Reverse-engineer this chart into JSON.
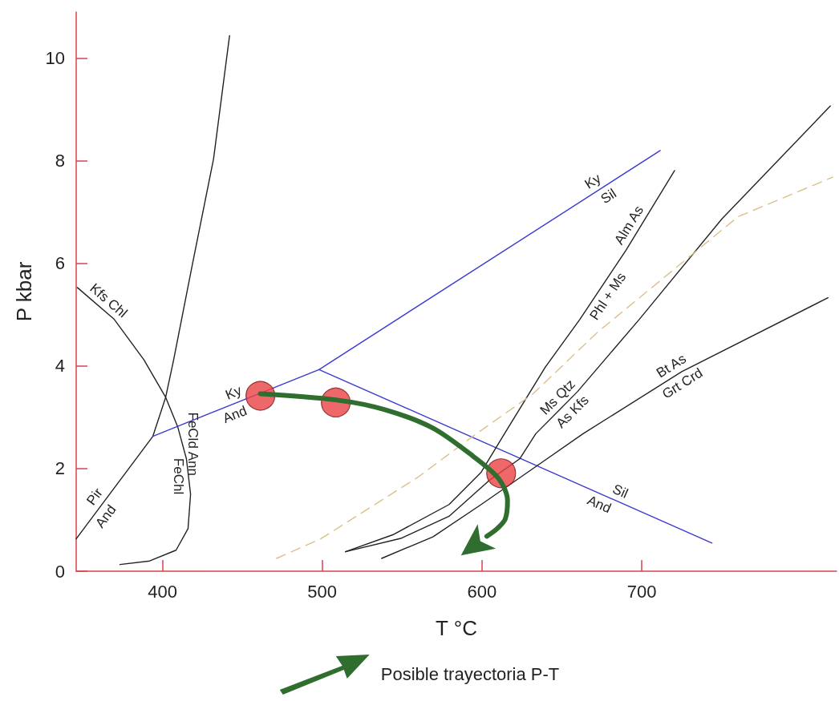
{
  "chart_data": {
    "type": "line",
    "xlabel": "T °C",
    "ylabel": "P kbar",
    "xlim": [
      346,
      822
    ],
    "ylim": [
      0,
      10.9
    ],
    "xticks": [
      400,
      500,
      600,
      700
    ],
    "yticks": [
      0,
      2,
      4,
      6,
      8,
      10
    ],
    "grid": false,
    "legend": "bottom",
    "marker": "none",
    "line_style": "solid",
    "series": [
      {
        "color": "#222222",
        "x": [
          346,
          394,
          402,
          407,
          418.6,
          432,
          442
        ],
        "values": [
          0.63,
          2.63,
          3.39,
          4.12,
          5.96,
          8.04,
          10.44
        ]
      },
      {
        "color": "#222222",
        "x": [
          346.7,
          369.8,
          388.4,
          402,
          409.5,
          415,
          417.6,
          416,
          408.5,
          392,
          373.4
        ],
        "values": [
          5.53,
          4.91,
          4.12,
          3.39,
          2.82,
          2.19,
          1.5,
          0.83,
          0.41,
          0.2,
          0.13
        ]
      },
      {
        "color": "#3a3ad0",
        "x": [
          394,
          498,
          711.6
        ],
        "values": [
          2.63,
          3.93,
          8.2
        ]
      },
      {
        "color": "#3a3ad0",
        "x": [
          498,
          744
        ],
        "values": [
          3.93,
          0.55
        ]
      },
      {
        "color": "#222222",
        "x": [
          514.6,
          544.2,
          579.4,
          599.5,
          614.1,
          639.7,
          661.3,
          690,
          720.6
        ],
        "values": [
          0.38,
          0.71,
          1.3,
          1.93,
          2.68,
          3.98,
          4.91,
          6.25,
          7.81
        ]
      },
      {
        "color": "#222222",
        "x": [
          514.6,
          549.2,
          579.4,
          604.5,
          623.6,
          633.7,
          659.8,
          698.5,
          750.3,
          818.1
        ],
        "values": [
          0.38,
          0.64,
          1.07,
          1.77,
          2.19,
          2.68,
          3.5,
          4.91,
          6.87,
          9.07
        ]
      },
      {
        "color": "#222222",
        "x": [
          537.2,
          569.3,
          599.5,
          634.2,
          663.3,
          725.1,
          816.6
        ],
        "values": [
          0.25,
          0.67,
          1.3,
          2.05,
          2.68,
          3.89,
          5.33
        ]
      },
      {
        "color": "#dcc08a",
        "line_style": "dashed",
        "x": [
          471.4,
          499,
          559.3,
          596.5,
          631.7,
          672.4,
          760.3,
          819.6
        ],
        "values": [
          0.25,
          0.63,
          1.82,
          2.68,
          3.45,
          4.66,
          6.91,
          7.68
        ]
      },
      {
        "name": "Posible trayectoria P-T",
        "color": "#2f6e2f",
        "x": [
          461.3,
          508.5,
          539.2,
          569.3,
          594.5,
          610.6,
          616,
          614.6,
          609.5,
          603
        ],
        "values": [
          3.46,
          3.34,
          3.15,
          2.79,
          2.24,
          1.8,
          1.38,
          1.02,
          0.83,
          0.68
        ]
      },
      {
        "type": "scatter",
        "marker": "circle",
        "color": "#ea4245",
        "x": [
          461.3,
          508.5,
          612
        ],
        "values": [
          3.42,
          3.29,
          1.91
        ]
      }
    ],
    "annotations": [
      {
        "text": "Kfs Chl",
        "x": 362,
        "y": 5.12
      },
      {
        "text": "Pir",
        "x": 362.8,
        "y": 1.33
      },
      {
        "text": "And",
        "x": 359.3,
        "y": 1.19
      },
      {
        "text": "FeChl",
        "x": 416.3,
        "y": 1.85
      },
      {
        "text": "FeCld Ann",
        "x": 412.5,
        "y": 2.48
      },
      {
        "text": "Ky",
        "x": 446.9,
        "y": 3.29
      },
      {
        "text": "And",
        "x": 442.9,
        "y": 3.24
      },
      {
        "text": "Ky",
        "x": 672.9,
        "y": 7.43
      },
      {
        "text": "Sil",
        "x": 675.7,
        "y": 7.48
      },
      {
        "text": "Alm As",
        "x": 697.6,
        "y": 6.64
      },
      {
        "text": "Phl + Ms",
        "x": 673.4,
        "y": 5.47
      },
      {
        "text": "Ms Qtz",
        "x": 652,
        "y": 3.25
      },
      {
        "text": "As Kfs",
        "x": 652,
        "y": 3.25
      },
      {
        "text": "Bt As",
        "x": 722,
        "y": 3.83
      },
      {
        "text": "Grt Crd",
        "x": 722,
        "y": 3.83
      },
      {
        "text": "Sil",
        "x": 684,
        "y": 1.37
      },
      {
        "text": "And",
        "x": 676,
        "y": 1.49
      }
    ]
  }
}
